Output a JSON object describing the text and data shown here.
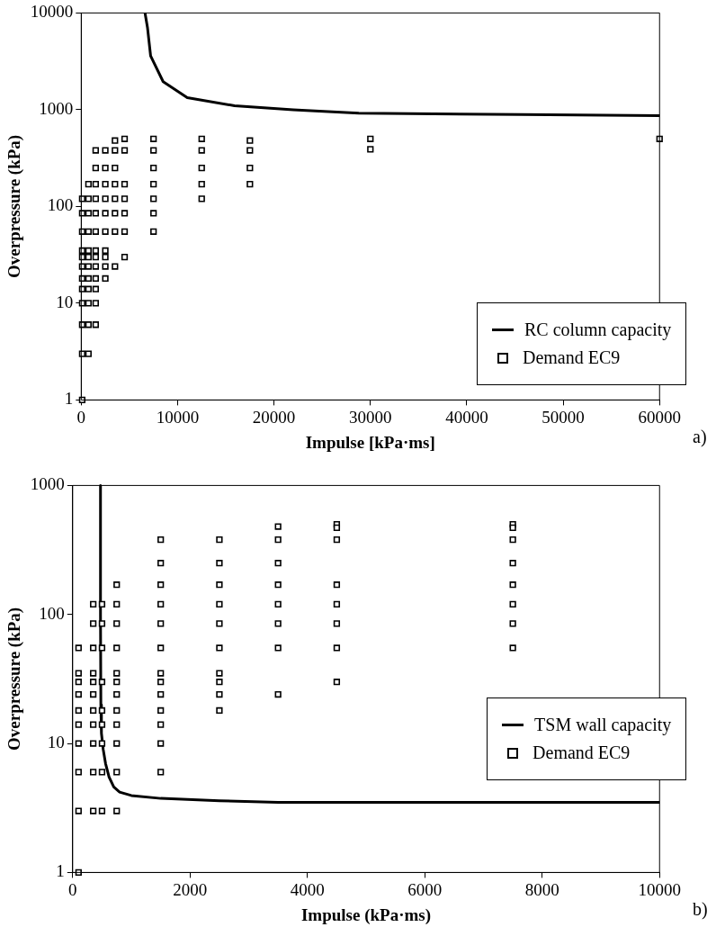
{
  "chart_data": [
    {
      "type": "scatter",
      "xlabel": "Impulse [kPa·ms]",
      "ylabel": "Overpressure (kPa)",
      "log": "y",
      "grid": false,
      "legend": "bottom right",
      "xlim": [
        0,
        60000
      ],
      "xticks": [
        0,
        10000,
        20000,
        30000,
        40000,
        50000,
        60000
      ],
      "ylim": [
        1,
        10000
      ],
      "yticks": [
        1,
        10,
        100,
        1000,
        10000
      ],
      "annotations": [
        "a)"
      ],
      "series": [
        {
          "name": "RC column capacity",
          "type": "line",
          "marker": "none",
          "line_style": "solid",
          "color": "#000000",
          "x": [
            6620,
            6880,
            7200,
            8500,
            11000,
            15900,
            22000,
            28800,
            45600,
            60000
          ],
          "values": [
            10000,
            7000,
            3600,
            1950,
            1330,
            1100,
            1000,
            920,
            890,
            870
          ]
        },
        {
          "name": "Demand EC9",
          "type": "scatter",
          "marker": "square",
          "color": "#000000",
          "x": [
            100,
            100,
            100,
            100,
            100,
            100,
            100,
            100,
            100,
            100,
            100,
            100,
            750,
            750,
            750,
            750,
            750,
            750,
            750,
            750,
            750,
            750,
            750,
            750,
            1500,
            1500,
            1500,
            1500,
            1500,
            1500,
            1500,
            1500,
            1500,
            1500,
            1500,
            1500,
            1500,
            2500,
            2500,
            2500,
            2500,
            2500,
            2500,
            2500,
            2500,
            2500,
            2500,
            3500,
            3500,
            3500,
            3500,
            3500,
            3500,
            3500,
            3500,
            4500,
            4500,
            4500,
            4500,
            4500,
            4500,
            4500,
            7500,
            7500,
            7500,
            7500,
            7500,
            7500,
            7500,
            12500,
            12500,
            12500,
            12500,
            12500,
            17500,
            17500,
            17500,
            17500,
            30000,
            30000,
            60000
          ],
          "values": [
            120,
            85,
            55,
            35,
            30,
            24,
            18,
            14,
            10,
            6,
            3,
            1,
            170,
            120,
            85,
            55,
            35,
            30,
            24,
            18,
            14,
            10,
            6,
            3,
            380,
            250,
            170,
            120,
            85,
            55,
            35,
            30,
            24,
            18,
            14,
            10,
            6,
            380,
            250,
            170,
            120,
            85,
            55,
            35,
            30,
            24,
            18,
            480,
            380,
            250,
            170,
            120,
            85,
            55,
            24,
            500,
            380,
            170,
            120,
            85,
            55,
            30,
            500,
            380,
            250,
            170,
            120,
            85,
            55,
            500,
            380,
            250,
            170,
            120,
            480,
            380,
            250,
            170,
            500,
            390,
            500
          ]
        }
      ]
    },
    {
      "type": "scatter",
      "xlabel": "Impulse (kPa·ms)",
      "ylabel": "Overpressure (kPa)",
      "log": "y",
      "grid": false,
      "legend": "bottom right",
      "xlim": [
        0,
        10000
      ],
      "xticks": [
        0,
        2000,
        4000,
        6000,
        8000,
        10000
      ],
      "ylim": [
        1,
        1000
      ],
      "yticks": [
        1,
        10,
        100,
        1000
      ],
      "annotations": [
        "b)"
      ],
      "series": [
        {
          "name": "TSM wall capacity",
          "type": "line",
          "marker": "none",
          "line_style": "solid",
          "color": "#000000",
          "x": [
            474,
            474,
            480,
            490,
            520,
            560,
            620,
            700,
            800,
            1000,
            1500,
            2500,
            3500,
            10000
          ],
          "values": [
            1000,
            100,
            20,
            12,
            9,
            7,
            5.5,
            4.6,
            4.2,
            3.95,
            3.75,
            3.6,
            3.5,
            3.5
          ]
        },
        {
          "name": "Demand EC9",
          "type": "scatter",
          "marker": "square",
          "color": "#000000",
          "x": [
            100,
            100,
            100,
            100,
            100,
            100,
            100,
            100,
            100,
            100,
            350,
            350,
            350,
            350,
            350,
            350,
            350,
            350,
            350,
            350,
            350,
            500,
            500,
            500,
            500,
            500,
            500,
            500,
            500,
            500,
            750,
            750,
            750,
            750,
            750,
            750,
            750,
            750,
            750,
            750,
            750,
            750,
            1500,
            1500,
            1500,
            1500,
            1500,
            1500,
            1500,
            1500,
            1500,
            1500,
            1500,
            1500,
            1500,
            2500,
            2500,
            2500,
            2500,
            2500,
            2500,
            2500,
            2500,
            2500,
            2500,
            3500,
            3500,
            3500,
            3500,
            3500,
            3500,
            3500,
            3500,
            4500,
            4500,
            4500,
            4500,
            4500,
            4500,
            4500,
            4500,
            7500,
            7500,
            7500,
            7500,
            7500,
            7500,
            7500,
            7500
          ],
          "values": [
            55,
            35,
            30,
            24,
            18,
            14,
            10,
            6,
            3,
            1,
            120,
            85,
            55,
            35,
            30,
            24,
            18,
            14,
            10,
            6,
            3,
            120,
            85,
            55,
            30,
            18,
            14,
            10,
            6,
            3,
            170,
            120,
            85,
            55,
            35,
            30,
            24,
            18,
            14,
            10,
            6,
            3,
            380,
            250,
            170,
            120,
            85,
            55,
            35,
            30,
            24,
            18,
            14,
            10,
            6,
            380,
            250,
            170,
            120,
            85,
            55,
            35,
            30,
            24,
            18,
            480,
            380,
            250,
            170,
            120,
            85,
            55,
            24,
            500,
            470,
            380,
            170,
            120,
            85,
            55,
            30,
            500,
            470,
            380,
            250,
            170,
            120,
            85,
            55
          ]
        }
      ]
    }
  ]
}
